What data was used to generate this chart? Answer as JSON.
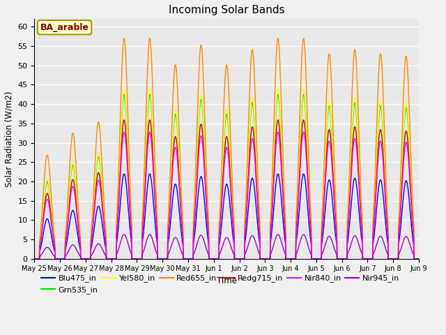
{
  "title": "Incoming Solar Bands",
  "xlabel": "Time",
  "ylabel": "Solar Radiation (W/m2)",
  "annotation": "BA_arable",
  "ylim": [
    0,
    62
  ],
  "yticks": [
    0,
    5,
    10,
    15,
    20,
    25,
    30,
    35,
    40,
    45,
    50,
    55,
    60
  ],
  "n_days": 16,
  "points_per_day": 144,
  "x_tick_labels": [
    "May 25",
    "May 26",
    "May 27",
    "May 28",
    "May 29",
    "May 30",
    "May 31",
    "Jun 1",
    "Jun 2",
    "Jun 3",
    "Jun 4",
    "Jun 5",
    "Jun 6",
    "Jun 7",
    "Jun 8",
    "Jun 9"
  ],
  "day_peaks": [
    0.47,
    0.57,
    0.62,
    1.0,
    1.0,
    0.88,
    0.97,
    0.88,
    0.95,
    1.0,
    1.0,
    0.93,
    0.95,
    0.93,
    0.92,
    0.0
  ],
  "base_max": 57.0,
  "series": [
    {
      "name": "Blu475_in",
      "color": "#0000ff",
      "lw": 1.0,
      "peak_scale": 0.385
    },
    {
      "name": "Grn535_in",
      "color": "#00dd00",
      "lw": 1.0,
      "peak_scale": 0.745
    },
    {
      "name": "Yel580_in",
      "color": "#ffff00",
      "lw": 1.0,
      "peak_scale": 0.77
    },
    {
      "name": "Red655_in",
      "color": "#ff8800",
      "lw": 1.0,
      "peak_scale": 1.0
    },
    {
      "name": "Redg715_in",
      "color": "#cc0000",
      "lw": 1.0,
      "peak_scale": 0.63
    },
    {
      "name": "Nir840_in",
      "color": "#ff00ff",
      "lw": 1.0,
      "peak_scale": 0.575
    },
    {
      "name": "Nir945_in",
      "color": "#9900cc",
      "lw": 1.0,
      "peak_scale": 0.11
    }
  ],
  "bg_color": "#e8e8e8",
  "grid_color": "#ffffff",
  "fig_facecolor": "#f0f0f0",
  "annotation_color": "#8b0000",
  "annotation_bg": "#ffffcc",
  "annotation_edge": "#999900"
}
